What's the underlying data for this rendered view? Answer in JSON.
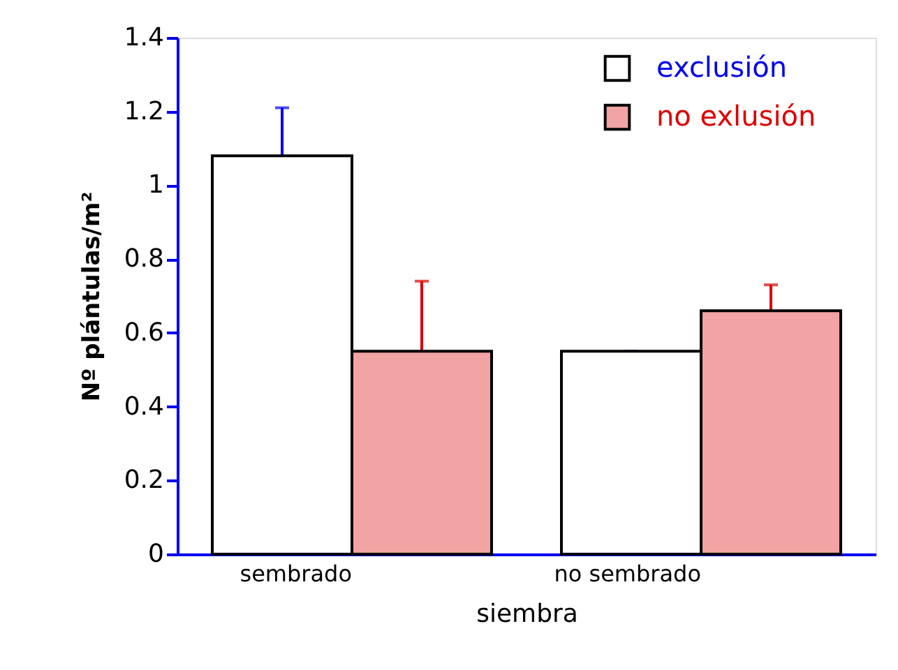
{
  "chart_data": {
    "type": "bar",
    "xlabel": "siembra",
    "ylabel": "Nº plántulas/m²",
    "categories": [
      "sembrado",
      "no sembrado"
    ],
    "series": [
      {
        "name": "exclusión",
        "color": "#ffffff",
        "values": [
          1.08,
          0.55
        ],
        "errors": [
          0.13,
          0.0
        ]
      },
      {
        "name": "no exlusión",
        "color": "#f2a3a3",
        "values": [
          0.55,
          0.66
        ],
        "errors": [
          0.19,
          0.07
        ]
      }
    ],
    "ylim": [
      0,
      1.4
    ],
    "yticks": [
      0,
      0.2,
      0.4,
      0.6,
      0.8,
      1,
      1.2,
      1.4
    ],
    "grid": false,
    "legend": "top right"
  }
}
